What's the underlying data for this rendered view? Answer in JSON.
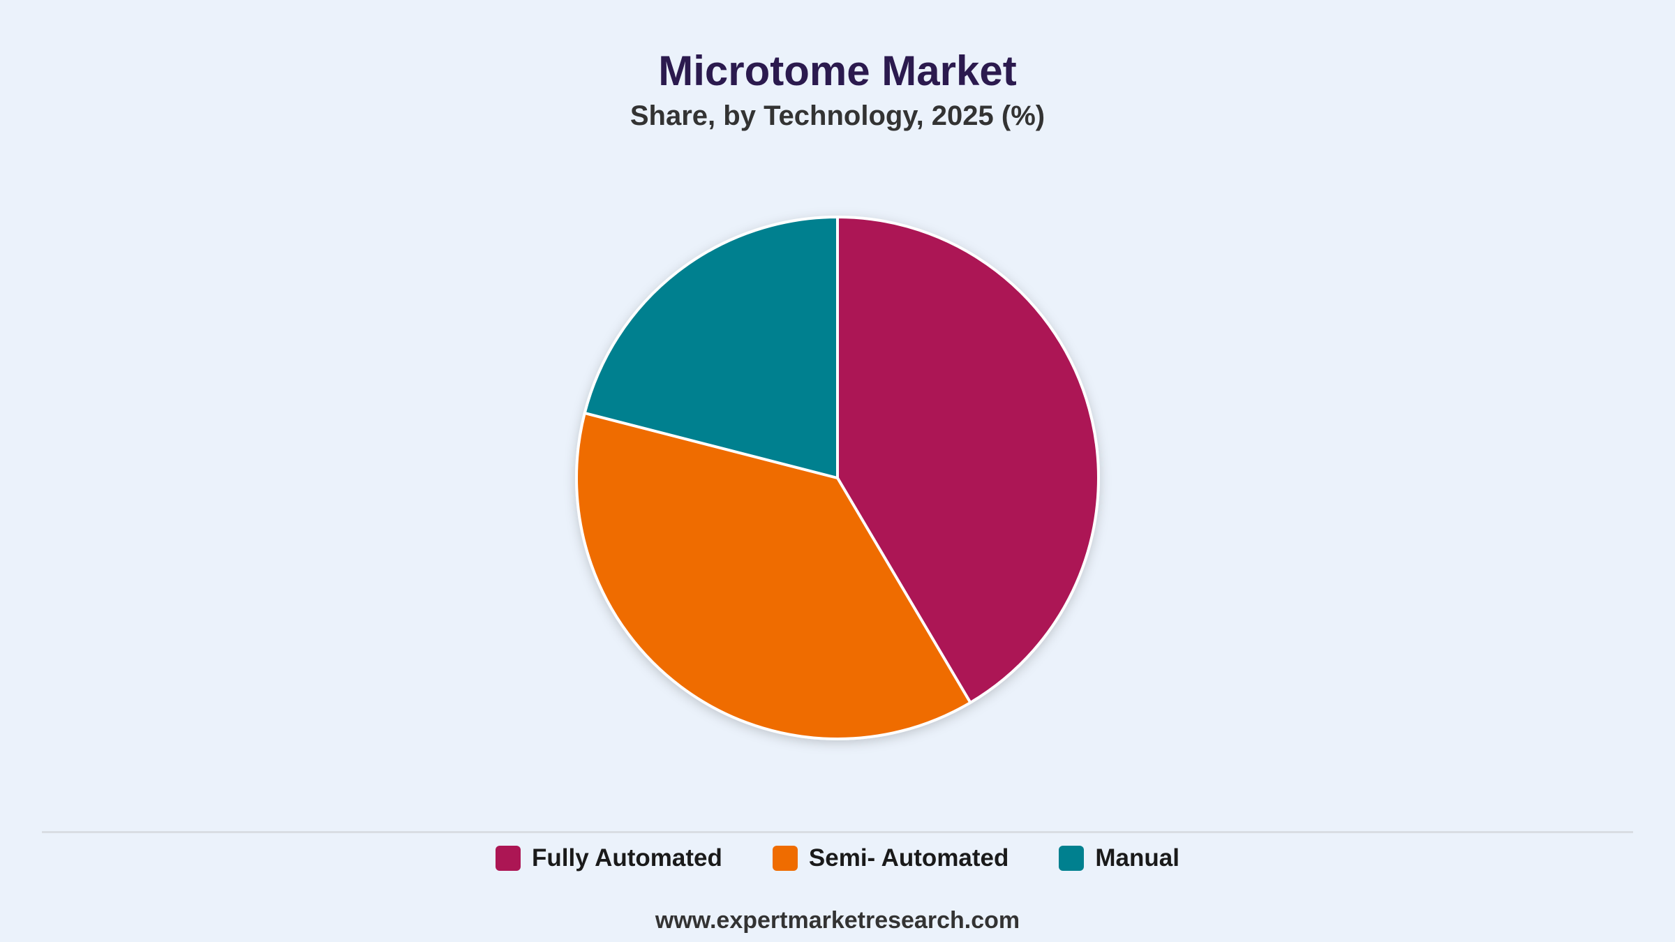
{
  "chart_data": {
    "type": "pie",
    "title": "Microtome Market",
    "subtitle": "Share, by Technology, 2025 (%)",
    "categories": [
      "Fully Automated",
      "Semi- Automated",
      "Manual"
    ],
    "values": [
      41.5,
      37.5,
      21.0
    ],
    "colors": [
      "#ac1654",
      "#ef6c00",
      "#00808f"
    ],
    "legend_position": "bottom"
  },
  "footer": {
    "source": "www.expertmarketresearch.com"
  }
}
